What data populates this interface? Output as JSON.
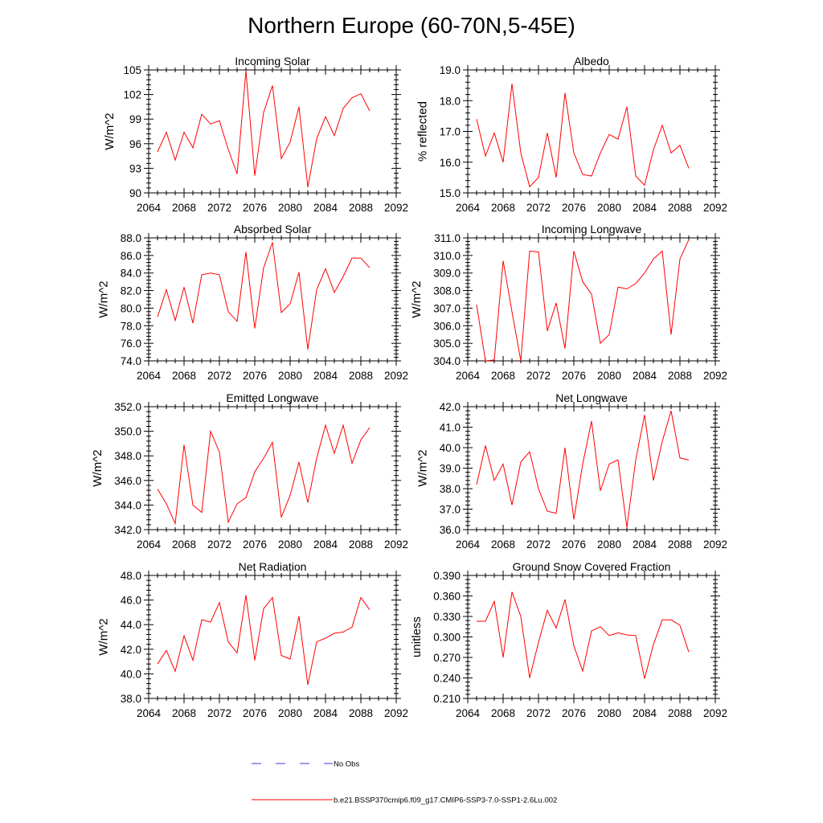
{
  "title": "Northern Europe (60-70N,5-45E)",
  "legend": {
    "entries": [
      {
        "label": "No Obs",
        "color": "#3b3bd9",
        "dash": "dashed"
      },
      {
        "label": "b.e21.BSSP370cmip6.f09_g17.CMIP6-SSP3-7.0-SSP1-2.6Lu.002",
        "color": "#ff0000",
        "dash": "solid"
      }
    ]
  },
  "chart_data": [
    {
      "type": "line",
      "title": "Incoming Solar",
      "xlabel": "",
      "ylabel": "W/m^2",
      "xlim": [
        2064,
        2092
      ],
      "ylim": [
        90,
        105
      ],
      "xticks": [
        "2064",
        "2068",
        "2072",
        "2076",
        "2080",
        "2084",
        "2088",
        "2092"
      ],
      "yticks": [
        "90",
        "93",
        "96",
        "99",
        "102",
        "105"
      ],
      "x": [
        2065,
        2066,
        2067,
        2068,
        2069,
        2070,
        2071,
        2072,
        2073,
        2074,
        2075,
        2076,
        2077,
        2078,
        2079,
        2080,
        2081,
        2082,
        2083,
        2084,
        2085,
        2086,
        2087,
        2088,
        2089
      ],
      "series": [
        {
          "color": "#ff0000",
          "values": [
            95.0,
            97.4,
            94.0,
            97.4,
            95.5,
            99.6,
            98.4,
            98.8,
            95.3,
            92.3,
            104.9,
            92.1,
            99.8,
            103.1,
            94.2,
            96.2,
            100.5,
            90.7,
            96.6,
            99.3,
            97.0,
            100.3,
            101.6,
            102.1,
            100.0
          ]
        }
      ]
    },
    {
      "type": "line",
      "title": "Albedo",
      "xlabel": "",
      "ylabel": "% reflected",
      "xlim": [
        2064,
        2092
      ],
      "ylim": [
        15.0,
        19.0
      ],
      "xticks": [
        "2064",
        "2068",
        "2072",
        "2076",
        "2080",
        "2084",
        "2088",
        "2092"
      ],
      "yticks": [
        "15.0",
        "16.0",
        "17.0",
        "18.0",
        "19.0"
      ],
      "x": [
        2065,
        2066,
        2067,
        2068,
        2069,
        2070,
        2071,
        2072,
        2073,
        2074,
        2075,
        2076,
        2077,
        2078,
        2079,
        2080,
        2081,
        2082,
        2083,
        2084,
        2085,
        2086,
        2087,
        2088,
        2089
      ],
      "series": [
        {
          "color": "#ff0000",
          "values": [
            17.4,
            16.2,
            16.95,
            16.0,
            18.55,
            16.3,
            15.2,
            15.5,
            16.95,
            15.5,
            18.25,
            16.3,
            15.6,
            15.55,
            16.3,
            16.9,
            16.75,
            17.8,
            15.55,
            15.25,
            16.4,
            17.2,
            16.3,
            16.55,
            15.8
          ]
        }
      ]
    },
    {
      "type": "line",
      "title": "Absorbed Solar",
      "xlabel": "",
      "ylabel": "W/m^2",
      "xlim": [
        2064,
        2092
      ],
      "ylim": [
        74.0,
        88.0
      ],
      "xticks": [
        "2064",
        "2068",
        "2072",
        "2076",
        "2080",
        "2084",
        "2088",
        "2092"
      ],
      "yticks": [
        "74.0",
        "76.0",
        "78.0",
        "80.0",
        "82.0",
        "84.0",
        "86.0",
        "88.0"
      ],
      "x": [
        2065,
        2066,
        2067,
        2068,
        2069,
        2070,
        2071,
        2072,
        2073,
        2074,
        2075,
        2076,
        2077,
        2078,
        2079,
        2080,
        2081,
        2082,
        2083,
        2084,
        2085,
        2086,
        2087,
        2088,
        2089
      ],
      "series": [
        {
          "color": "#ff0000",
          "values": [
            79.0,
            82.1,
            78.6,
            82.4,
            78.3,
            83.8,
            84.0,
            83.8,
            79.6,
            78.5,
            86.4,
            77.7,
            84.6,
            87.5,
            79.5,
            80.5,
            84.1,
            75.3,
            82.1,
            84.5,
            81.8,
            83.6,
            85.7,
            85.7,
            84.6
          ]
        }
      ]
    },
    {
      "type": "line",
      "title": "Incoming Longwave",
      "xlabel": "",
      "ylabel": "W/m^2",
      "xlim": [
        2064,
        2092
      ],
      "ylim": [
        304.0,
        311.0
      ],
      "xticks": [
        "2064",
        "2068",
        "2072",
        "2076",
        "2080",
        "2084",
        "2088",
        "2092"
      ],
      "yticks": [
        "304.0",
        "305.0",
        "306.0",
        "307.0",
        "308.0",
        "309.0",
        "310.0",
        "311.0"
      ],
      "x": [
        2065,
        2066,
        2067,
        2068,
        2069,
        2070,
        2071,
        2072,
        2073,
        2074,
        2075,
        2076,
        2077,
        2078,
        2079,
        2080,
        2081,
        2082,
        2083,
        2084,
        2085,
        2086,
        2087,
        2088,
        2089
      ],
      "series": [
        {
          "color": "#ff0000",
          "values": [
            307.2,
            304.0,
            304.05,
            309.7,
            306.8,
            304.0,
            310.25,
            310.2,
            305.7,
            307.3,
            304.7,
            310.25,
            308.5,
            307.8,
            305.0,
            305.5,
            308.2,
            308.1,
            308.4,
            309.0,
            309.8,
            310.25,
            305.5,
            309.8,
            310.9
          ]
        }
      ]
    },
    {
      "type": "line",
      "title": "Emitted Longwave",
      "xlabel": "",
      "ylabel": "W/m^2",
      "xlim": [
        2064,
        2092
      ],
      "ylim": [
        342.0,
        352.0
      ],
      "xticks": [
        "2064",
        "2068",
        "2072",
        "2076",
        "2080",
        "2084",
        "2088",
        "2092"
      ],
      "yticks": [
        "342.0",
        "344.0",
        "346.0",
        "348.0",
        "350.0",
        "352.0"
      ],
      "x": [
        2065,
        2066,
        2067,
        2068,
        2069,
        2070,
        2071,
        2072,
        2073,
        2074,
        2075,
        2076,
        2077,
        2078,
        2079,
        2080,
        2081,
        2082,
        2083,
        2084,
        2085,
        2086,
        2087,
        2088,
        2089
      ],
      "series": [
        {
          "color": "#ff0000",
          "values": [
            345.3,
            344.1,
            342.5,
            348.9,
            344.0,
            343.4,
            350.0,
            348.3,
            342.6,
            344.1,
            344.6,
            346.7,
            347.8,
            349.1,
            343.0,
            344.8,
            347.5,
            344.2,
            347.8,
            350.5,
            348.2,
            350.5,
            347.4,
            349.3,
            350.3
          ]
        }
      ]
    },
    {
      "type": "line",
      "title": "Net Longwave",
      "xlabel": "",
      "ylabel": "W/m^2",
      "xlim": [
        2064,
        2092
      ],
      "ylim": [
        36.0,
        42.0
      ],
      "xticks": [
        "2064",
        "2068",
        "2072",
        "2076",
        "2080",
        "2084",
        "2088",
        "2092"
      ],
      "yticks": [
        "36.0",
        "37.0",
        "38.0",
        "39.0",
        "40.0",
        "41.0",
        "42.0"
      ],
      "x": [
        2065,
        2066,
        2067,
        2068,
        2069,
        2070,
        2071,
        2072,
        2073,
        2074,
        2075,
        2076,
        2077,
        2078,
        2079,
        2080,
        2081,
        2082,
        2083,
        2084,
        2085,
        2086,
        2087,
        2088,
        2089
      ],
      "series": [
        {
          "color": "#ff0000",
          "values": [
            38.2,
            40.1,
            38.4,
            39.2,
            37.2,
            39.3,
            39.8,
            38.0,
            36.9,
            36.8,
            40.0,
            36.5,
            39.2,
            41.3,
            37.9,
            39.2,
            39.4,
            36.1,
            39.4,
            41.6,
            38.4,
            40.3,
            41.8,
            39.5,
            39.4
          ]
        }
      ]
    },
    {
      "type": "line",
      "title": "Net Radiation",
      "xlabel": "",
      "ylabel": "W/m^2",
      "xlim": [
        2064,
        2092
      ],
      "ylim": [
        38.0,
        48.0
      ],
      "xticks": [
        "2064",
        "2068",
        "2072",
        "2076",
        "2080",
        "2084",
        "2088",
        "2092"
      ],
      "yticks": [
        "38.0",
        "40.0",
        "42.0",
        "44.0",
        "46.0",
        "48.0"
      ],
      "x": [
        2065,
        2066,
        2067,
        2068,
        2069,
        2070,
        2071,
        2072,
        2073,
        2074,
        2075,
        2076,
        2077,
        2078,
        2079,
        2080,
        2081,
        2082,
        2083,
        2084,
        2085,
        2086,
        2087,
        2088,
        2089
      ],
      "series": [
        {
          "color": "#ff0000",
          "values": [
            40.8,
            41.9,
            40.2,
            43.1,
            41.1,
            44.4,
            44.2,
            45.8,
            42.6,
            41.7,
            46.4,
            41.1,
            45.3,
            46.2,
            41.5,
            41.2,
            44.7,
            39.1,
            42.6,
            42.9,
            43.3,
            43.4,
            43.8,
            46.2,
            45.2
          ]
        }
      ]
    },
    {
      "type": "line",
      "title": "Ground Snow Covered Fraction",
      "xlabel": "",
      "ylabel": "unitless",
      "xlim": [
        2064,
        2092
      ],
      "ylim": [
        0.21,
        0.39
      ],
      "xticks": [
        "2064",
        "2068",
        "2072",
        "2076",
        "2080",
        "2084",
        "2088",
        "2092"
      ],
      "yticks": [
        "0.210",
        "0.240",
        "0.270",
        "0.300",
        "0.330",
        "0.360",
        "0.390"
      ],
      "x": [
        2065,
        2066,
        2067,
        2068,
        2069,
        2070,
        2071,
        2072,
        2073,
        2074,
        2075,
        2076,
        2077,
        2078,
        2079,
        2080,
        2081,
        2082,
        2083,
        2084,
        2085,
        2086,
        2087,
        2088,
        2089
      ],
      "series": [
        {
          "color": "#ff0000",
          "values": [
            0.323,
            0.323,
            0.352,
            0.27,
            0.366,
            0.33,
            0.24,
            0.292,
            0.339,
            0.313,
            0.355,
            0.287,
            0.25,
            0.309,
            0.315,
            0.302,
            0.306,
            0.303,
            0.302,
            0.239,
            0.289,
            0.325,
            0.325,
            0.317,
            0.278
          ]
        }
      ]
    }
  ]
}
